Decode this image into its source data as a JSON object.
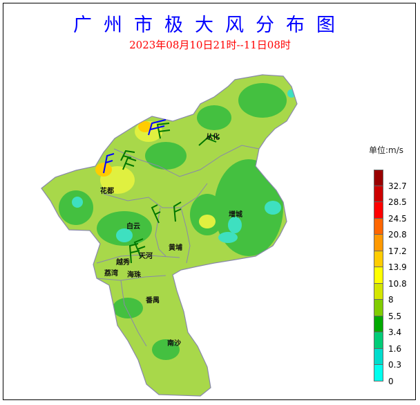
{
  "title": "广州市极大风分布图",
  "subtitle": "2023年08月10日21时--11日08时",
  "legend": {
    "unit": "单位:m/s",
    "colors": [
      "#990000",
      "#cc0000",
      "#ff0000",
      "#ff6600",
      "#ff9900",
      "#ffcc00",
      "#ffff00",
      "#d4e600",
      "#80cc00",
      "#00aa00",
      "#00cc77",
      "#00dccc",
      "#00ffee"
    ],
    "ticks": [
      "32.7",
      "28.5",
      "24.5",
      "20.8",
      "17.2",
      "13.9",
      "10.8",
      "8",
      "5.5",
      "3.4",
      "1.6",
      "0.3",
      "0"
    ]
  },
  "districts": [
    "从化",
    "花都",
    "增城",
    "白云",
    "黄埔",
    "天河",
    "越秀",
    "荔湾",
    "海珠",
    "番禺",
    "南沙"
  ],
  "map_colors": {
    "base": "#a8d84a",
    "dark": "#44c040",
    "yellow": "#e0f040",
    "teal": "#3ee0c0",
    "border": "#8888aa"
  }
}
